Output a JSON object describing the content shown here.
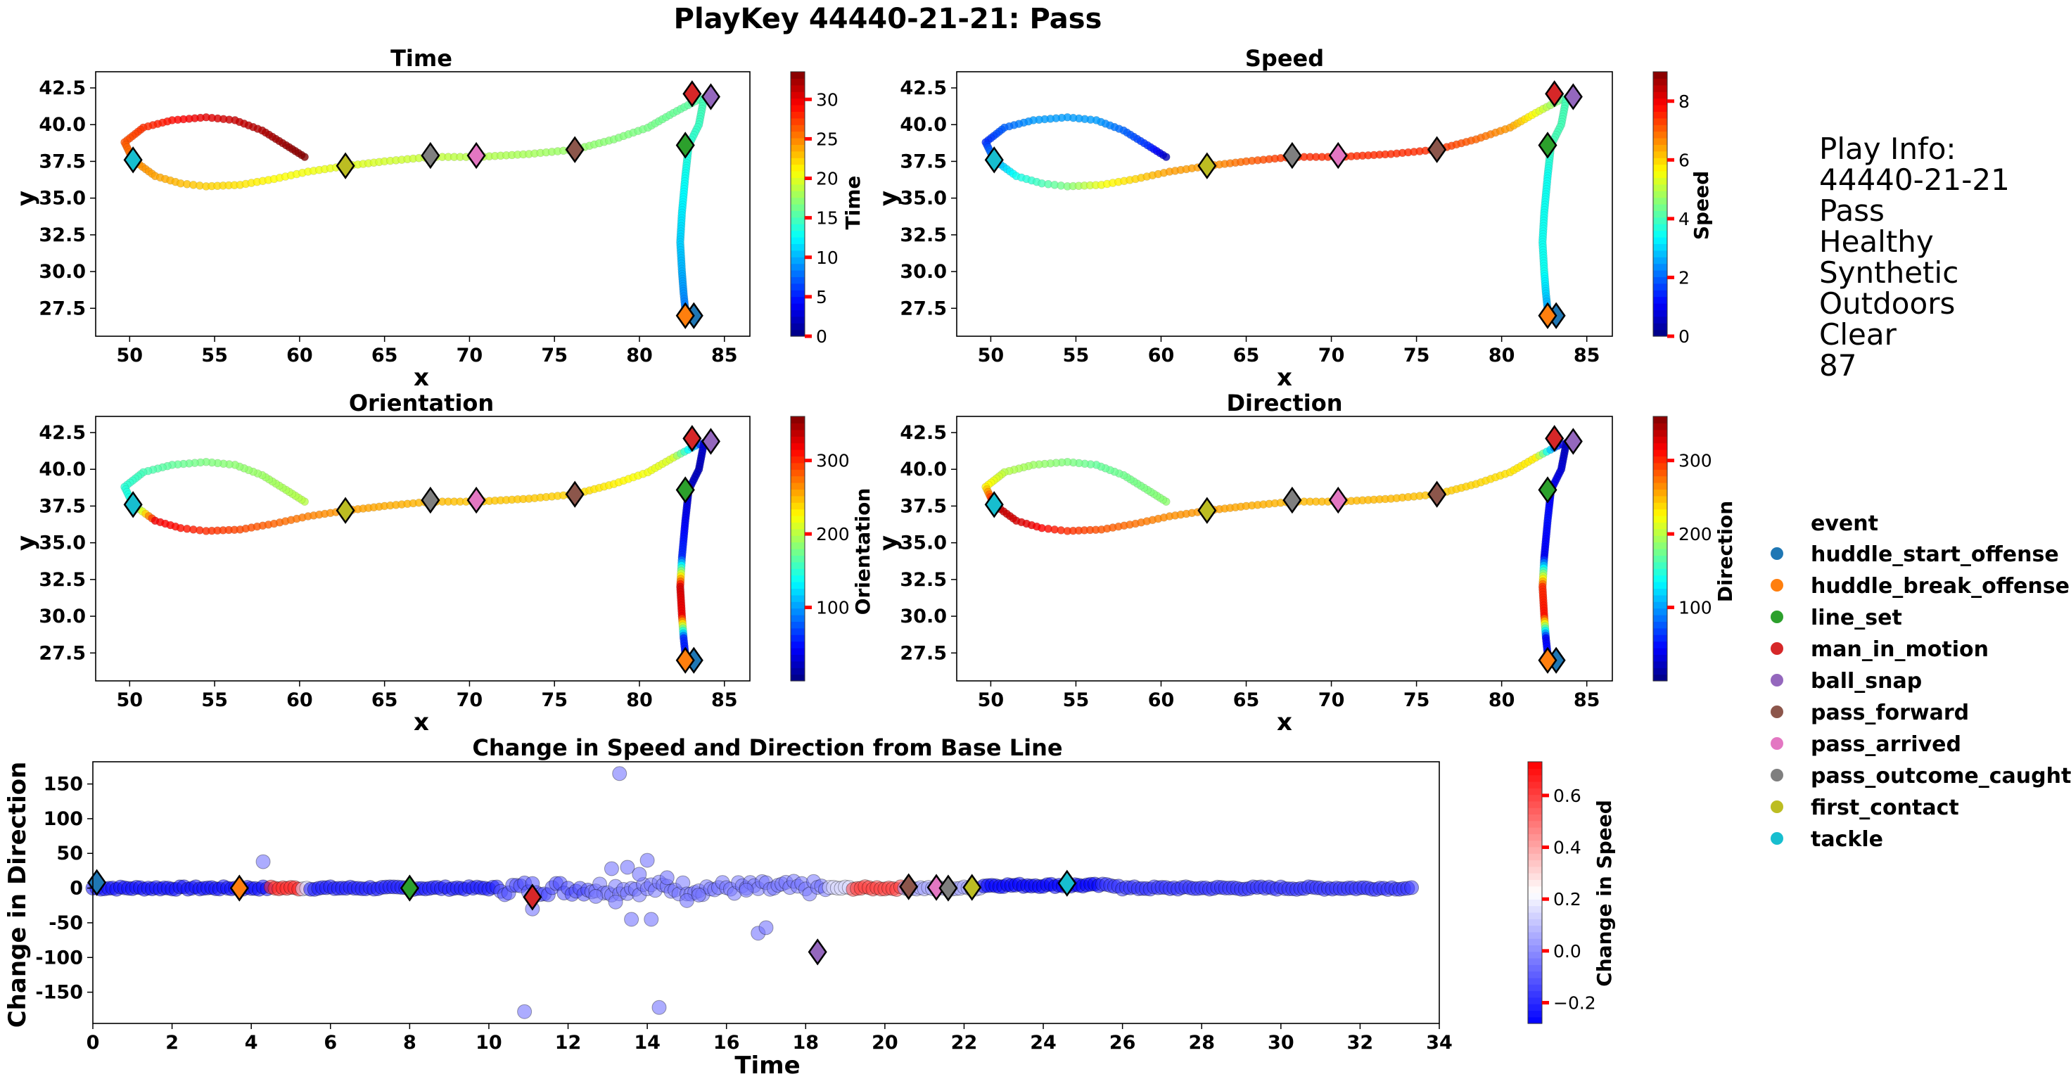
{
  "figure": {
    "suptitle": "PlayKey 44440-21-21: Pass"
  },
  "play_info": {
    "lines": [
      "Play Info:",
      "44440-21-21",
      "Pass",
      "Healthy",
      "Synthetic",
      "Outdoors",
      "Clear",
      "87"
    ]
  },
  "colors": {
    "event_colors": {
      "huddle_start_offense": "#1f77b4",
      "huddle_break_offense": "#ff7f0e",
      "line_set": "#2ca02c",
      "man_in_motion": "#d62728",
      "ball_snap": "#9467bd",
      "pass_forward": "#8c564b",
      "pass_arrived": "#e377c2",
      "pass_outcome_caught": "#7f7f7f",
      "first_contact": "#bcbd22",
      "tackle": "#17becf"
    },
    "colorbar_tick": "#ff0000"
  },
  "legend": {
    "title": "event",
    "placement": "right",
    "items": [
      "huddle_start_offense",
      "huddle_break_offense",
      "line_set",
      "man_in_motion",
      "ball_snap",
      "pass_forward",
      "pass_arrived",
      "pass_outcome_caught",
      "first_contact",
      "tackle"
    ]
  },
  "chart_data": [
    {
      "type": "scatter",
      "title": "Time",
      "xlabel": "x",
      "ylabel": "y",
      "xlim": [
        48,
        86.5
      ],
      "ylim": [
        25.6,
        43.6
      ],
      "xticks": [
        "50",
        "55",
        "60",
        "65",
        "70",
        "75",
        "80",
        "85"
      ],
      "yticks": [
        "27.5",
        "30.0",
        "32.5",
        "35.0",
        "37.5",
        "40.0",
        "42.5"
      ],
      "colorbar": {
        "label": "Time",
        "colormap": "jet",
        "range": [
          0,
          33.5
        ],
        "ticks": [
          "0",
          "5",
          "10",
          "15",
          "20",
          "25",
          "30"
        ]
      },
      "path": "route",
      "color_by": "time"
    },
    {
      "type": "scatter",
      "title": "Speed",
      "xlabel": "x",
      "ylabel": "y",
      "xlim": [
        48,
        86.5
      ],
      "ylim": [
        25.6,
        43.6
      ],
      "xticks": [
        "50",
        "55",
        "60",
        "65",
        "70",
        "75",
        "80",
        "85"
      ],
      "yticks": [
        "27.5",
        "30.0",
        "32.5",
        "35.0",
        "37.5",
        "40.0",
        "42.5"
      ],
      "colorbar": {
        "label": "Speed",
        "colormap": "jet",
        "range": [
          0,
          9
        ],
        "ticks": [
          "0",
          "2",
          "4",
          "6",
          "8"
        ]
      },
      "path": "route",
      "color_by": "speed"
    },
    {
      "type": "scatter",
      "title": "Orientation",
      "xlabel": "x",
      "ylabel": "y",
      "xlim": [
        48,
        86.5
      ],
      "ylim": [
        25.6,
        43.6
      ],
      "xticks": [
        "50",
        "55",
        "60",
        "65",
        "70",
        "75",
        "80",
        "85"
      ],
      "yticks": [
        "27.5",
        "30.0",
        "32.5",
        "35.0",
        "37.5",
        "40.0",
        "42.5"
      ],
      "colorbar": {
        "label": "Orientation",
        "colormap": "jet",
        "range": [
          0,
          360
        ],
        "ticks": [
          "100",
          "200",
          "300"
        ]
      },
      "path": "route",
      "color_by": "orientation"
    },
    {
      "type": "scatter",
      "title": "Direction",
      "xlabel": "x",
      "ylabel": "y",
      "xlim": [
        48,
        86.5
      ],
      "ylim": [
        25.6,
        43.6
      ],
      "xticks": [
        "50",
        "55",
        "60",
        "65",
        "70",
        "75",
        "80",
        "85"
      ],
      "yticks": [
        "27.5",
        "30.0",
        "32.5",
        "35.0",
        "37.5",
        "40.0",
        "42.5"
      ],
      "colorbar": {
        "label": "Direction",
        "colormap": "jet",
        "range": [
          0,
          360
        ],
        "ticks": [
          "100",
          "200",
          "300"
        ]
      },
      "path": "route",
      "color_by": "direction"
    },
    {
      "type": "scatter",
      "title": "Change in Speed and Direction from Base Line",
      "xlabel": "Time",
      "ylabel": "Change in Direction",
      "xlim": [
        0,
        34
      ],
      "ylim": [
        -195,
        182
      ],
      "xticks": [
        "0",
        "2",
        "4",
        "6",
        "8",
        "10",
        "12",
        "14",
        "16",
        "18",
        "20",
        "22",
        "24",
        "26",
        "28",
        "30",
        "32",
        "34"
      ],
      "yticks": [
        "-150",
        "-100",
        "-50",
        "0",
        "50",
        "100",
        "150"
      ],
      "colorbar": {
        "label": "Change in Speed",
        "colormap": "bwr",
        "range": [
          -0.28,
          0.73
        ],
        "ticks": [
          "−0.2",
          "0.0",
          "0.2",
          "0.4",
          "0.6"
        ]
      },
      "series": [
        {
          "name": "outliers",
          "x": [
            4.3,
            10.9,
            11.1,
            12.7,
            13.1,
            13.2,
            13.3,
            13.5,
            13.6,
            13.8,
            14.0,
            14.1,
            14.3,
            14.5,
            15.0,
            15.3,
            16.5,
            16.8,
            17.0
          ],
          "y": [
            38,
            -178,
            -30,
            -12,
            28,
            -20,
            165,
            30,
            -45,
            20,
            40,
            -45,
            -172,
            15,
            -18,
            -10,
            -3,
            -65,
            -57
          ]
        },
        {
          "name": "change_in_speed_segments",
          "segments": [
            {
              "t": [
                0,
                4.5
              ],
              "v": -0.25
            },
            {
              "t": [
                4.5,
                5.2
              ],
              "v": 0.65
            },
            {
              "t": [
                5.2,
                5.4
              ],
              "v": 0.15
            },
            {
              "t": [
                5.4,
                10.2
              ],
              "v": -0.22
            },
            {
              "t": [
                10.2,
                12.5
              ],
              "v": -0.12
            },
            {
              "t": [
                12.5,
                18.5
              ],
              "v": -0.05
            },
            {
              "t": [
                18.5,
                19.2
              ],
              "v": 0.15
            },
            {
              "t": [
                19.2,
                20.5
              ],
              "v": 0.6
            },
            {
              "t": [
                20.5,
                22.5
              ],
              "v": 0.05
            },
            {
              "t": [
                22.5,
                25.5
              ],
              "v": -0.28
            },
            {
              "t": [
                25.5,
                33.4
              ],
              "v": -0.18
            }
          ]
        }
      ],
      "events": [
        {
          "event": "huddle_start_offense",
          "time": 0.1,
          "dir": 8
        },
        {
          "event": "huddle_break_offense",
          "time": 3.7,
          "dir": 0
        },
        {
          "event": "line_set",
          "time": 8.0,
          "dir": 0
        },
        {
          "event": "man_in_motion",
          "time": 11.1,
          "dir": -13
        },
        {
          "event": "ball_snap",
          "time": 18.3,
          "dir": -92
        },
        {
          "event": "pass_forward",
          "time": 20.6,
          "dir": 2
        },
        {
          "event": "pass_arrived",
          "time": 21.3,
          "dir": 1
        },
        {
          "event": "pass_outcome_caught",
          "time": 21.6,
          "dir": 0
        },
        {
          "event": "first_contact",
          "time": 22.2,
          "dir": 1
        },
        {
          "event": "tackle",
          "time": 24.6,
          "dir": 7
        }
      ]
    }
  ],
  "route": {
    "points": [
      [
        60.3,
        37.8,
        33.4,
        0.5,
        200,
        185
      ],
      [
        59.2,
        38.6,
        32.8,
        1.5,
        195,
        180
      ],
      [
        57.8,
        39.6,
        32.0,
        2.0,
        190,
        175
      ],
      [
        56.2,
        40.3,
        31.2,
        2.5,
        185,
        170
      ],
      [
        54.5,
        40.5,
        30.2,
        2.5,
        180,
        180
      ],
      [
        52.5,
        40.3,
        29.0,
        2.5,
        170,
        190
      ],
      [
        50.8,
        39.8,
        27.8,
        2.0,
        160,
        200
      ],
      [
        49.7,
        38.8,
        26.6,
        1.5,
        150,
        230
      ],
      [
        50.2,
        37.6,
        25.0,
        2.5,
        140,
        340
      ],
      [
        51.5,
        36.5,
        24.0,
        3.5,
        320,
        330
      ],
      [
        53.0,
        36.0,
        23.2,
        4.0,
        310,
        315
      ],
      [
        54.5,
        35.8,
        22.5,
        4.5,
        300,
        300
      ],
      [
        56.5,
        35.9,
        21.8,
        5.5,
        290,
        285
      ],
      [
        58.5,
        36.3,
        21.0,
        6.0,
        280,
        275
      ],
      [
        60.5,
        36.8,
        20.5,
        6.5,
        270,
        265
      ],
      [
        62.8,
        37.2,
        20.0,
        6.5,
        260,
        260
      ],
      [
        65.0,
        37.5,
        19.5,
        7.0,
        255,
        255
      ],
      [
        67.7,
        37.8,
        19.0,
        7.5,
        250,
        250
      ],
      [
        70.5,
        37.8,
        18.5,
        7.5,
        245,
        250
      ],
      [
        73.5,
        38.0,
        18.0,
        7.5,
        245,
        250
      ],
      [
        76.2,
        38.3,
        17.5,
        7.5,
        240,
        245
      ],
      [
        78.5,
        39.0,
        17.0,
        7.0,
        230,
        240
      ],
      [
        80.5,
        39.8,
        16.5,
        6.5,
        220,
        235
      ],
      [
        82.0,
        40.8,
        16.0,
        5.5,
        210,
        230
      ],
      [
        83.3,
        41.6,
        15.5,
        4.5,
        100,
        60
      ],
      [
        83.8,
        41.8,
        15.0,
        4.0,
        30,
        20
      ],
      [
        83.5,
        40.0,
        14.5,
        4.0,
        20,
        30
      ],
      [
        82.9,
        38.6,
        14.0,
        4.0,
        25,
        40
      ],
      [
        82.7,
        36.5,
        13.0,
        3.5,
        40,
        50
      ],
      [
        82.5,
        34.0,
        12.0,
        3.5,
        60,
        40
      ],
      [
        82.4,
        32.0,
        11.0,
        3.5,
        330,
        300
      ],
      [
        82.5,
        30.0,
        10.0,
        3.5,
        320,
        310
      ],
      [
        82.6,
        28.5,
        9.0,
        3.0,
        60,
        40
      ],
      [
        82.7,
        27.4,
        8.0,
        2.5,
        50,
        50
      ]
    ],
    "events": [
      {
        "event": "huddle_start_offense",
        "x": 83.2,
        "y": 27.0
      },
      {
        "event": "huddle_break_offense",
        "x": 82.7,
        "y": 27.0
      },
      {
        "event": "line_set",
        "x": 82.7,
        "y": 38.6
      },
      {
        "event": "man_in_motion",
        "x": 83.1,
        "y": 42.1
      },
      {
        "event": "ball_snap",
        "x": 84.2,
        "y": 41.9
      },
      {
        "event": "pass_forward",
        "x": 76.2,
        "y": 38.3
      },
      {
        "event": "pass_arrived",
        "x": 70.4,
        "y": 37.9
      },
      {
        "event": "pass_outcome_caught",
        "x": 67.7,
        "y": 37.9
      },
      {
        "event": "first_contact",
        "x": 62.7,
        "y": 37.2
      },
      {
        "event": "tackle",
        "x": 50.2,
        "y": 37.6
      }
    ]
  }
}
